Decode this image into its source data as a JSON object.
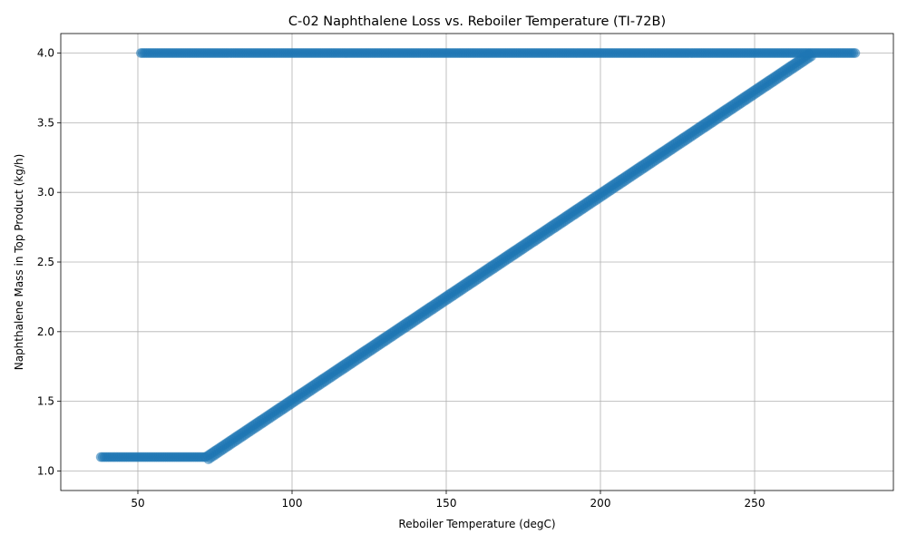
{
  "chart_data": {
    "type": "scatter",
    "title": "C-02 Naphthalene Loss vs. Reboiler Temperature (TI-72B)",
    "xlabel": "Reboiler Temperature (degC)",
    "ylabel": "Naphthalene Mass in Top Product (kg/h)",
    "xlim": [
      25,
      295
    ],
    "ylim": [
      0.86,
      4.14
    ],
    "xticks": [
      50,
      100,
      150,
      200,
      250
    ],
    "yticks": [
      1.0,
      1.5,
      2.0,
      2.5,
      3.0,
      3.5,
      4.0
    ],
    "xtick_labels": [
      "50",
      "100",
      "150",
      "200",
      "250"
    ],
    "ytick_labels": [
      "1.0",
      "1.5",
      "2.0",
      "2.5",
      "3.0",
      "3.5",
      "4.0"
    ],
    "grid": true,
    "marker_color": "#1f77b4",
    "series": [
      {
        "segments": [
          {
            "shape": "flat",
            "x_range": [
              38,
              72
            ],
            "y": 1.1
          },
          {
            "shape": "ramp",
            "x_range": [
              72,
              268
            ],
            "y_range": [
              1.1,
              4.0
            ]
          },
          {
            "shape": "flat",
            "x_range": [
              51,
              283
            ],
            "y": 4.0
          }
        ]
      }
    ]
  }
}
